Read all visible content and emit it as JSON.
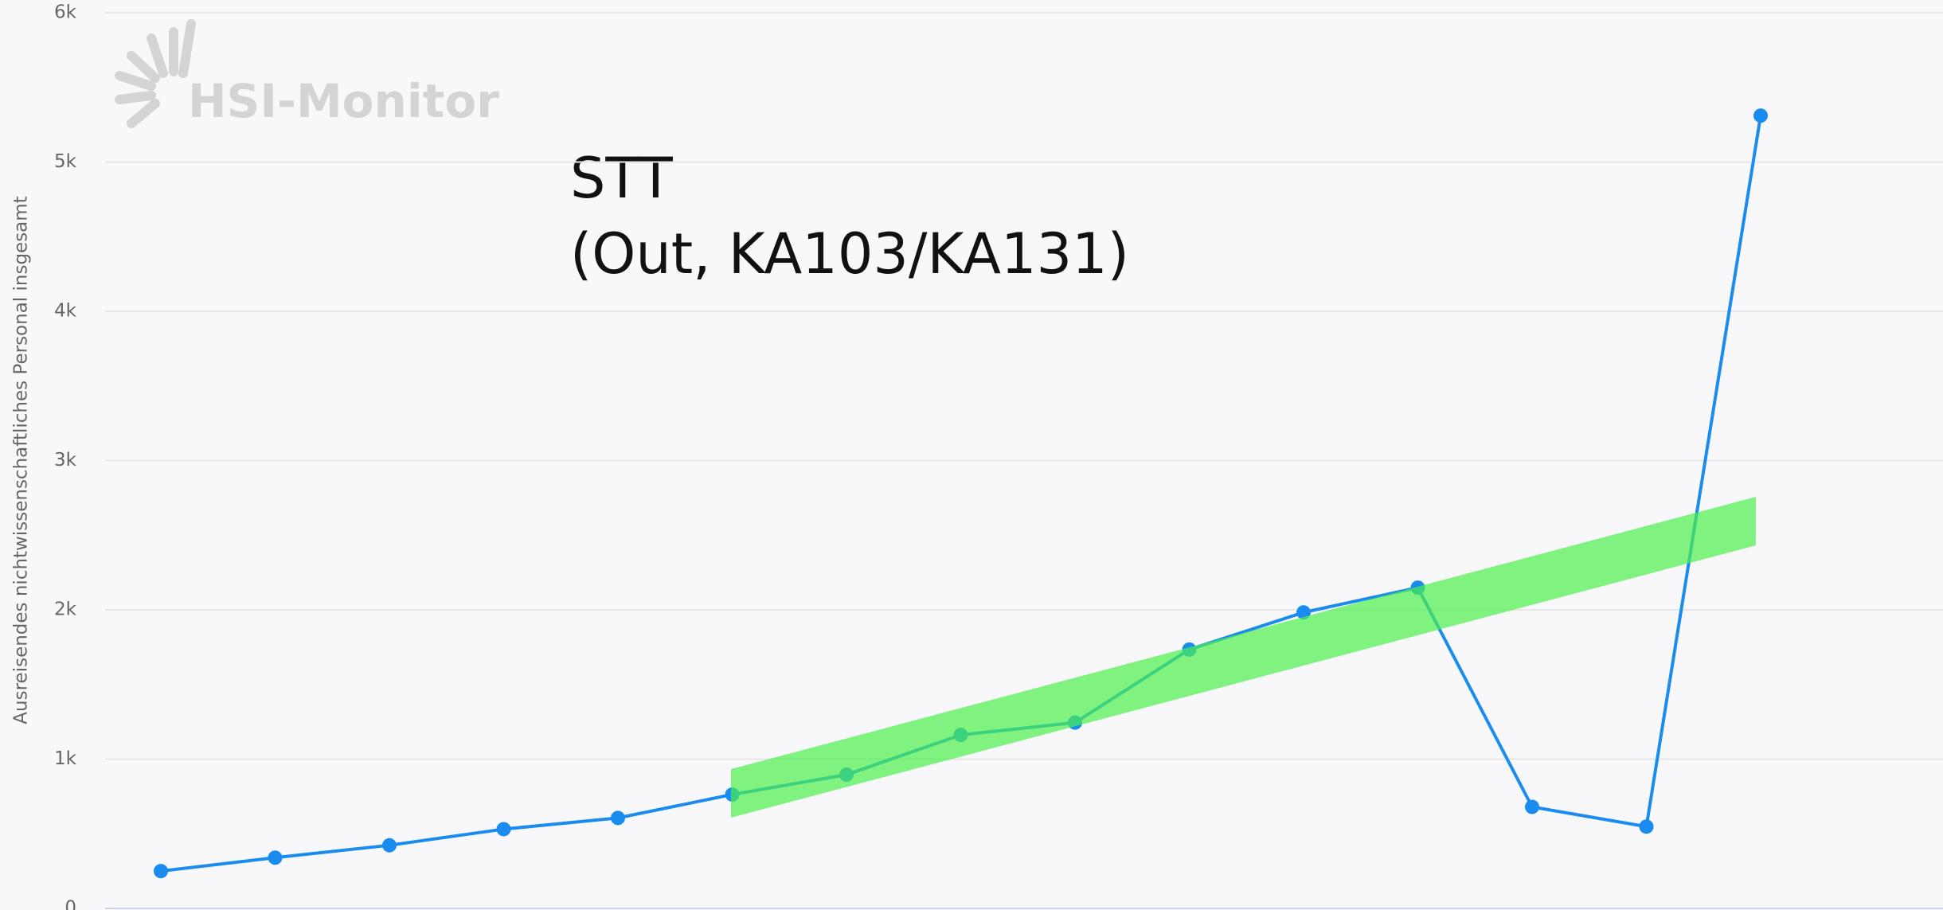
{
  "chart_data": {
    "type": "line",
    "y_label": "Ausreisendes nichtwissenschaftliches Personal insgesamt",
    "annotation": [
      "STT",
      "(Out, KA103/KA131)"
    ],
    "watermark": "HSI-Monitor",
    "series": [
      {
        "color": "#1a8cf0",
        "values": [
          250,
          340,
          423,
          531,
          606,
          763,
          896,
          1162,
          1245,
          1734,
          1983,
          2149,
          680,
          548,
          5311
        ]
      }
    ],
    "ylim": [
      0,
      6000
    ],
    "yticks": [
      0,
      {
        "value": 1000,
        "label": "1k"
      },
      {
        "value": 2000,
        "label": "2k"
      },
      {
        "value": 3000,
        "label": "3k"
      },
      {
        "value": 4000,
        "label": "4k"
      },
      {
        "value": 5000,
        "label": "5k"
      },
      {
        "value": 6000,
        "label": "6k"
      }
    ],
    "grid": true
  }
}
